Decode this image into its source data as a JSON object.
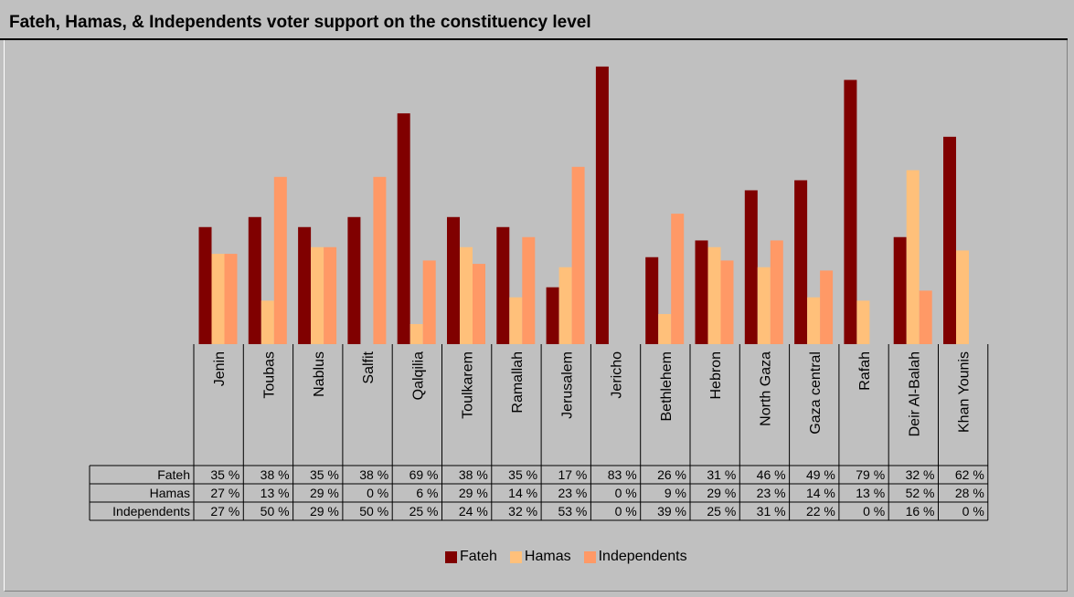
{
  "title": "Fateh, Hamas, & Independents voter support on the constituency level",
  "colors": {
    "Fateh": "#800000",
    "Hamas": "#ffc07a",
    "Independents": "#ff9966",
    "background": "#c0c0c0"
  },
  "chart_data": {
    "type": "bar",
    "title": "Fateh, Hamas, & Independents voter support on the constituency level",
    "xlabel": "",
    "ylabel": "",
    "ylim": [
      0,
      85
    ],
    "grid": false,
    "legend_position": "bottom",
    "categories": [
      "Jenin",
      "Toubas",
      "Nablus",
      "Salfit",
      "Qalqilia",
      "Toulkarem",
      "Ramallah",
      "Jerusalem",
      "Jericho",
      "Bethlehem",
      "Hebron",
      "North Gaza",
      "Gaza central",
      "Rafah",
      "Deir Al-Balah",
      "Khan Younis"
    ],
    "series": [
      {
        "name": "Fateh",
        "values": [
          35,
          38,
          35,
          38,
          69,
          38,
          35,
          17,
          83,
          26,
          31,
          46,
          49,
          79,
          32,
          62
        ],
        "labels": [
          "35 %",
          "38 %",
          "35 %",
          "38 %",
          "69 %",
          "38 %",
          "35 %",
          "17 %",
          "83 %",
          "26 %",
          "31 %",
          "46 %",
          "49 %",
          "79 %",
          "32 %",
          "62 %"
        ]
      },
      {
        "name": "Hamas",
        "values": [
          27,
          13,
          29,
          0,
          6,
          29,
          14,
          23,
          0,
          9,
          29,
          23,
          14,
          13,
          52,
          28
        ],
        "labels": [
          "27 %",
          "13 %",
          "29 %",
          "0 %",
          "6 %",
          "29 %",
          "14 %",
          "23 %",
          "0 %",
          "9 %",
          "29 %",
          "23 %",
          "14 %",
          "13 %",
          "52 %",
          "28 %"
        ]
      },
      {
        "name": "Independents",
        "values": [
          27,
          50,
          29,
          50,
          25,
          24,
          32,
          53,
          0,
          39,
          25,
          31,
          22,
          0,
          16,
          0
        ],
        "labels": [
          "27 %",
          "50 %",
          "29 %",
          "50 %",
          "25 %",
          "24 %",
          "32 %",
          "53 %",
          "0 %",
          "39 %",
          "25 %",
          "31 %",
          "22 %",
          "0 %",
          "16 %",
          "0 %"
        ]
      }
    ]
  }
}
